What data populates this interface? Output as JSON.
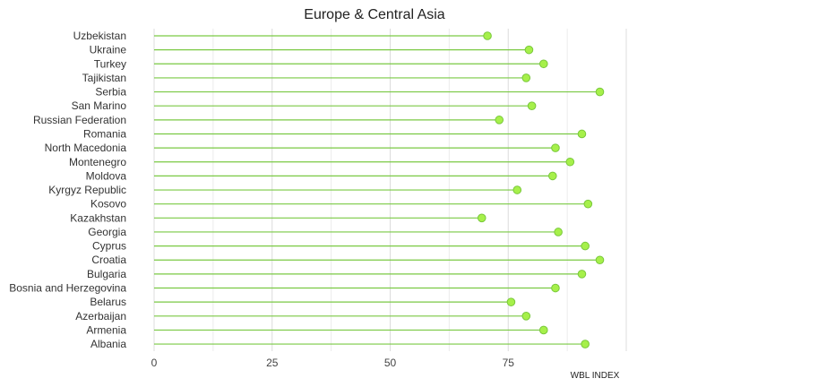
{
  "chart_data": {
    "type": "lollipop",
    "title": "Europe & Central Asia",
    "xlabel": "WBL INDEX",
    "ylabel": "",
    "xlim": [
      0,
      100
    ],
    "xticks": [
      0,
      25,
      50,
      75
    ],
    "grid": "vertical",
    "colors": {
      "stem": "#7ac943",
      "marker": "#a6f04a",
      "marker_stroke": "#79c83b"
    },
    "categories": [
      "Uzbekistan",
      "Ukraine",
      "Turkey",
      "Tajikistan",
      "Serbia",
      "San Marino",
      "Russian Federation",
      "Romania",
      "North Macedonia",
      "Montenegro",
      "Moldova",
      "Kyrgyz Republic",
      "Kosovo",
      "Kazakhstan",
      "Georgia",
      "Cyprus",
      "Croatia",
      "Bulgaria",
      "Bosnia and Herzegovina",
      "Belarus",
      "Azerbaijan",
      "Armenia",
      "Albania"
    ],
    "values": [
      70.6,
      79.4,
      82.5,
      78.8,
      94.4,
      80.0,
      73.1,
      90.6,
      85.0,
      88.1,
      84.4,
      76.9,
      91.9,
      69.4,
      85.6,
      91.3,
      94.4,
      90.6,
      85.0,
      75.6,
      78.8,
      82.5,
      91.3
    ]
  }
}
